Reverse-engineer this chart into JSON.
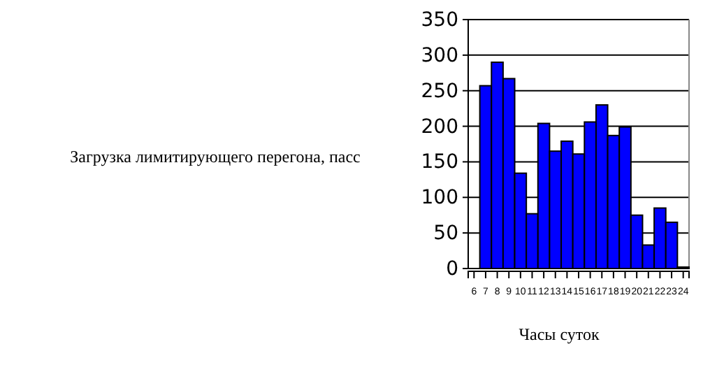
{
  "chart_data": {
    "type": "bar",
    "xlabel": "Часы суток",
    "ylabel": "Загрузка лимитирующего перегона, пасс",
    "categories": [
      "6",
      "7",
      "8",
      "9",
      "10",
      "11",
      "12",
      "13",
      "14",
      "15",
      "16",
      "17",
      "18",
      "19",
      "20",
      "21",
      "22",
      "23",
      "24"
    ],
    "values": [
      null,
      257,
      290,
      267,
      134,
      77,
      204,
      165,
      179,
      161,
      206,
      230,
      187,
      199,
      75,
      33,
      85,
      65,
      2
    ],
    "color": "#0000ff",
    "ylim": [
      0,
      350
    ],
    "yticks": [
      0,
      50,
      100,
      150,
      200,
      250,
      300,
      350
    ],
    "grid": "y"
  }
}
